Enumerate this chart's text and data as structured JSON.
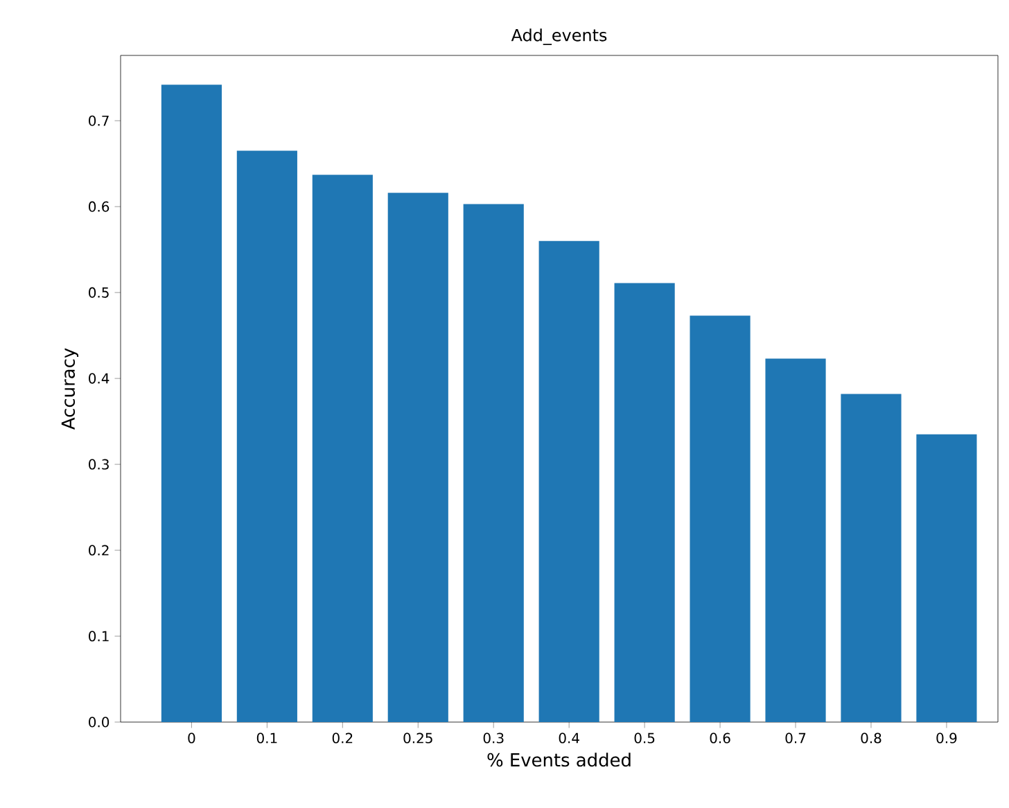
{
  "chart_data": {
    "type": "bar",
    "title": "Add_events",
    "xlabel": "% Events added",
    "ylabel": "Accuracy",
    "categories": [
      "0",
      "0.1",
      "0.2",
      "0.25",
      "0.3",
      "0.4",
      "0.5",
      "0.6",
      "0.7",
      "0.8",
      "0.9"
    ],
    "values": [
      0.742,
      0.665,
      0.637,
      0.616,
      0.603,
      0.56,
      0.511,
      0.473,
      0.423,
      0.382,
      0.335
    ],
    "color": "#1f77b4",
    "ylim": [
      0,
      0.776
    ],
    "yticks": [
      {
        "value": 0,
        "label": "0.0"
      },
      0.1,
      0.2,
      0.3,
      0.4,
      0.5,
      0.6,
      0.7
    ],
    "grid": false
  }
}
